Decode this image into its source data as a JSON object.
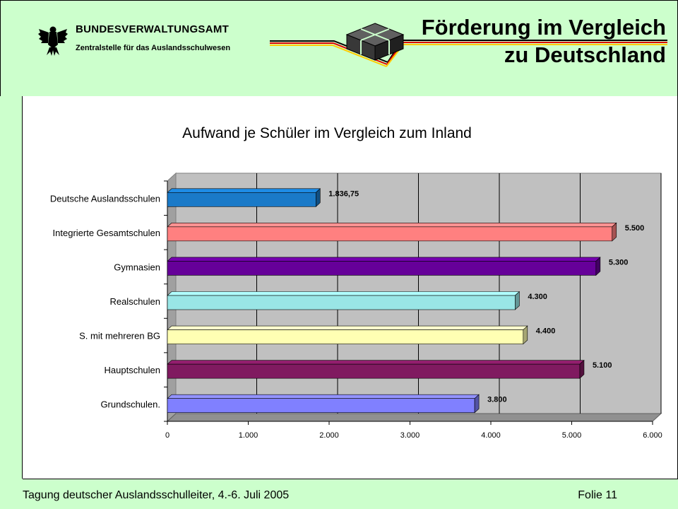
{
  "header": {
    "agency_name": "BUNDESVERWALTUNGSAMT",
    "agency_sub": "Zentralstelle für das Auslandsschulwesen",
    "title_line1": "Förderung im Vergleich",
    "title_line2": "zu Deutschland",
    "logo_icon": "federal-eagle-icon"
  },
  "footer": {
    "left": "Tagung deutscher Auslandsschulleiter, 4.-6. Juli 2005",
    "right": "Folie 11"
  },
  "chart_data": {
    "type": "bar",
    "orientation": "horizontal",
    "title": "Aufwand je Schüler im Vergleich zum Inland",
    "categories": [
      "Deutsche Auslandsschulen",
      "Integrierte Gesamtschulen",
      "Gymnasien",
      "Realschulen",
      "S. mit mehreren BG",
      "Hauptschulen",
      "Grundschulen."
    ],
    "values": [
      1836.75,
      5500,
      5300,
      4300,
      4400,
      5100,
      3800
    ],
    "value_labels": [
      "1.836,75",
      "5.500",
      "5.300",
      "4.300",
      "4.400",
      "5.100",
      "3.800"
    ],
    "colors": [
      "#1a7ac8",
      "#ff8080",
      "#660099",
      "#99e6e6",
      "#ffffb3",
      "#801a60",
      "#8080ff"
    ],
    "xlim": [
      0,
      6000
    ],
    "xticks": [
      0,
      1000,
      2000,
      3000,
      4000,
      5000,
      6000
    ],
    "xtick_labels": [
      "0",
      "1.000",
      "2.000",
      "3.000",
      "4.000",
      "5.000",
      "6.000"
    ],
    "grid": true,
    "legend": "none"
  }
}
